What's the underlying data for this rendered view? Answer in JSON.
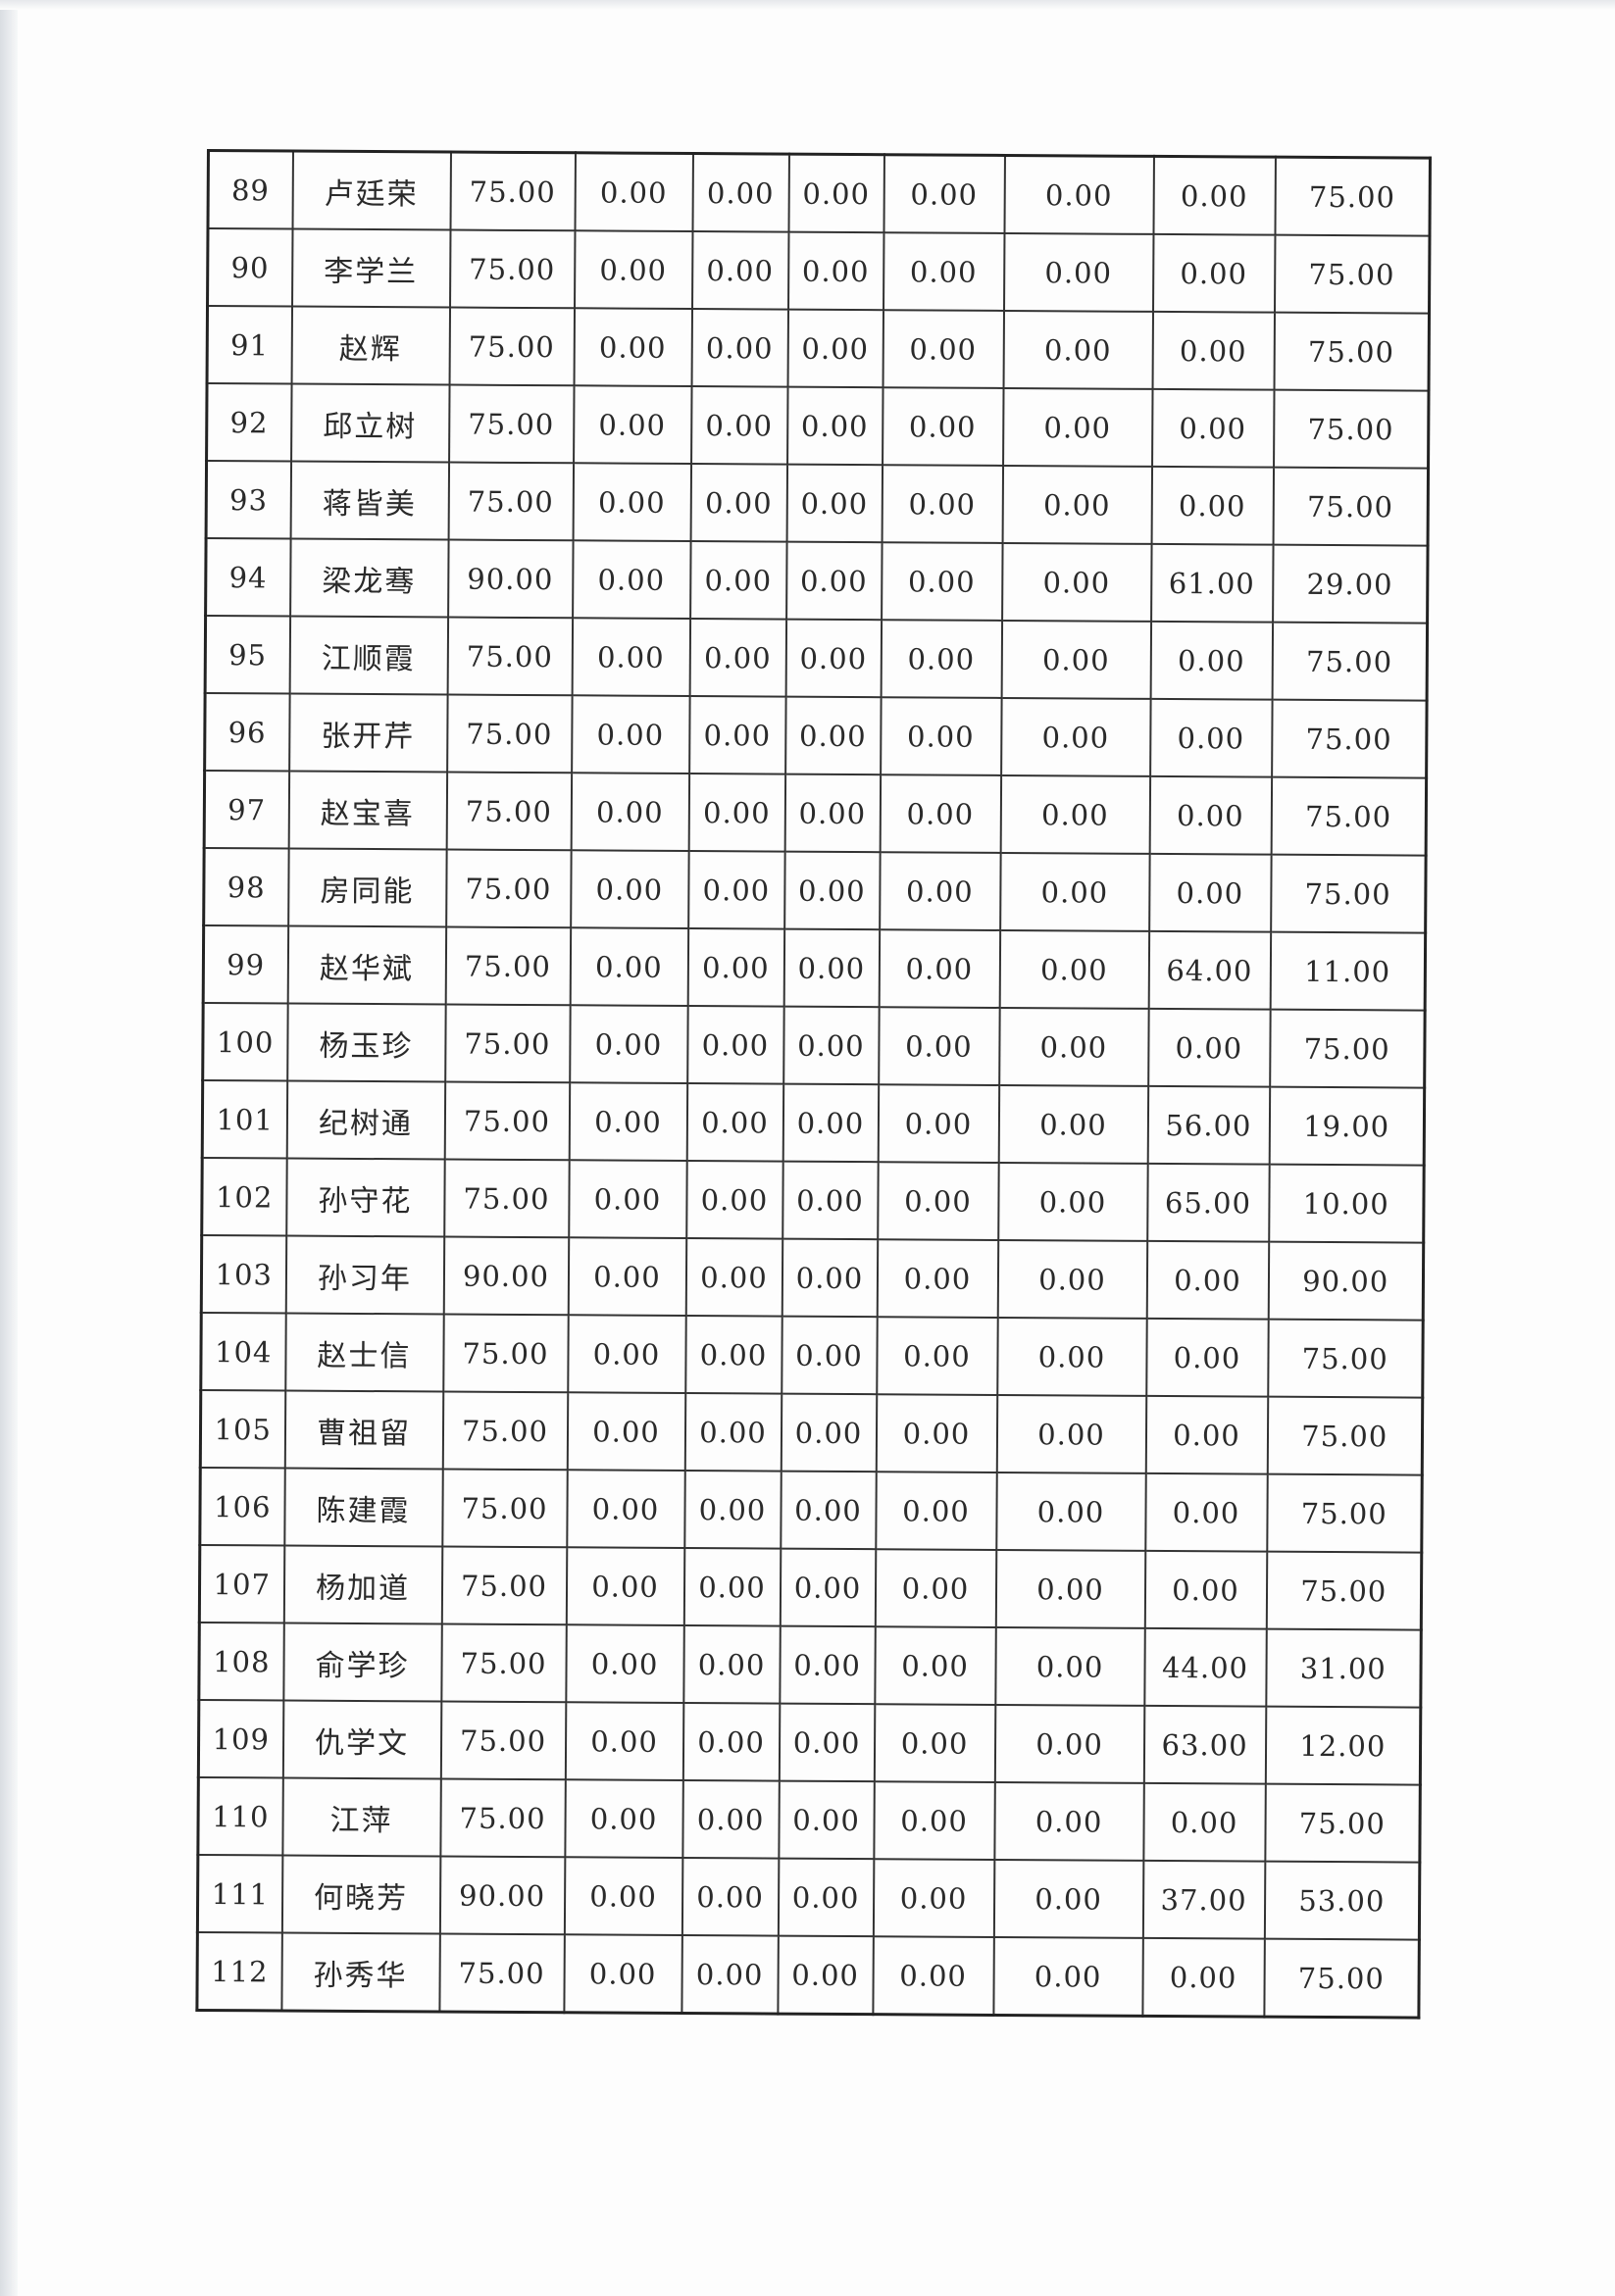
{
  "table": {
    "rows": [
      [
        "89",
        "卢廷荣",
        "75.00",
        "0.00",
        "0.00",
        "0.00",
        "0.00",
        "0.00",
        "0.00",
        "75.00"
      ],
      [
        "90",
        "李学兰",
        "75.00",
        "0.00",
        "0.00",
        "0.00",
        "0.00",
        "0.00",
        "0.00",
        "75.00"
      ],
      [
        "91",
        "赵辉",
        "75.00",
        "0.00",
        "0.00",
        "0.00",
        "0.00",
        "0.00",
        "0.00",
        "75.00"
      ],
      [
        "92",
        "邱立树",
        "75.00",
        "0.00",
        "0.00",
        "0.00",
        "0.00",
        "0.00",
        "0.00",
        "75.00"
      ],
      [
        "93",
        "蒋皆美",
        "75.00",
        "0.00",
        "0.00",
        "0.00",
        "0.00",
        "0.00",
        "0.00",
        "75.00"
      ],
      [
        "94",
        "梁龙骞",
        "90.00",
        "0.00",
        "0.00",
        "0.00",
        "0.00",
        "0.00",
        "61.00",
        "29.00"
      ],
      [
        "95",
        "江顺霞",
        "75.00",
        "0.00",
        "0.00",
        "0.00",
        "0.00",
        "0.00",
        "0.00",
        "75.00"
      ],
      [
        "96",
        "张开芹",
        "75.00",
        "0.00",
        "0.00",
        "0.00",
        "0.00",
        "0.00",
        "0.00",
        "75.00"
      ],
      [
        "97",
        "赵宝喜",
        "75.00",
        "0.00",
        "0.00",
        "0.00",
        "0.00",
        "0.00",
        "0.00",
        "75.00"
      ],
      [
        "98",
        "房同能",
        "75.00",
        "0.00",
        "0.00",
        "0.00",
        "0.00",
        "0.00",
        "0.00",
        "75.00"
      ],
      [
        "99",
        "赵华斌",
        "75.00",
        "0.00",
        "0.00",
        "0.00",
        "0.00",
        "0.00",
        "64.00",
        "11.00"
      ],
      [
        "100",
        "杨玉珍",
        "75.00",
        "0.00",
        "0.00",
        "0.00",
        "0.00",
        "0.00",
        "0.00",
        "75.00"
      ],
      [
        "101",
        "纪树通",
        "75.00",
        "0.00",
        "0.00",
        "0.00",
        "0.00",
        "0.00",
        "56.00",
        "19.00"
      ],
      [
        "102",
        "孙守花",
        "75.00",
        "0.00",
        "0.00",
        "0.00",
        "0.00",
        "0.00",
        "65.00",
        "10.00"
      ],
      [
        "103",
        "孙习年",
        "90.00",
        "0.00",
        "0.00",
        "0.00",
        "0.00",
        "0.00",
        "0.00",
        "90.00"
      ],
      [
        "104",
        "赵士信",
        "75.00",
        "0.00",
        "0.00",
        "0.00",
        "0.00",
        "0.00",
        "0.00",
        "75.00"
      ],
      [
        "105",
        "曹祖留",
        "75.00",
        "0.00",
        "0.00",
        "0.00",
        "0.00",
        "0.00",
        "0.00",
        "75.00"
      ],
      [
        "106",
        "陈建霞",
        "75.00",
        "0.00",
        "0.00",
        "0.00",
        "0.00",
        "0.00",
        "0.00",
        "75.00"
      ],
      [
        "107",
        "杨加道",
        "75.00",
        "0.00",
        "0.00",
        "0.00",
        "0.00",
        "0.00",
        "0.00",
        "75.00"
      ],
      [
        "108",
        "俞学珍",
        "75.00",
        "0.00",
        "0.00",
        "0.00",
        "0.00",
        "0.00",
        "44.00",
        "31.00"
      ],
      [
        "109",
        "仇学文",
        "75.00",
        "0.00",
        "0.00",
        "0.00",
        "0.00",
        "0.00",
        "63.00",
        "12.00"
      ],
      [
        "110",
        "江萍",
        "75.00",
        "0.00",
        "0.00",
        "0.00",
        "0.00",
        "0.00",
        "0.00",
        "75.00"
      ],
      [
        "111",
        "何晓芳",
        "90.00",
        "0.00",
        "0.00",
        "0.00",
        "0.00",
        "0.00",
        "37.00",
        "53.00"
      ],
      [
        "112",
        "孙秀华",
        "75.00",
        "0.00",
        "0.00",
        "0.00",
        "0.00",
        "0.00",
        "0.00",
        "75.00"
      ]
    ]
  }
}
